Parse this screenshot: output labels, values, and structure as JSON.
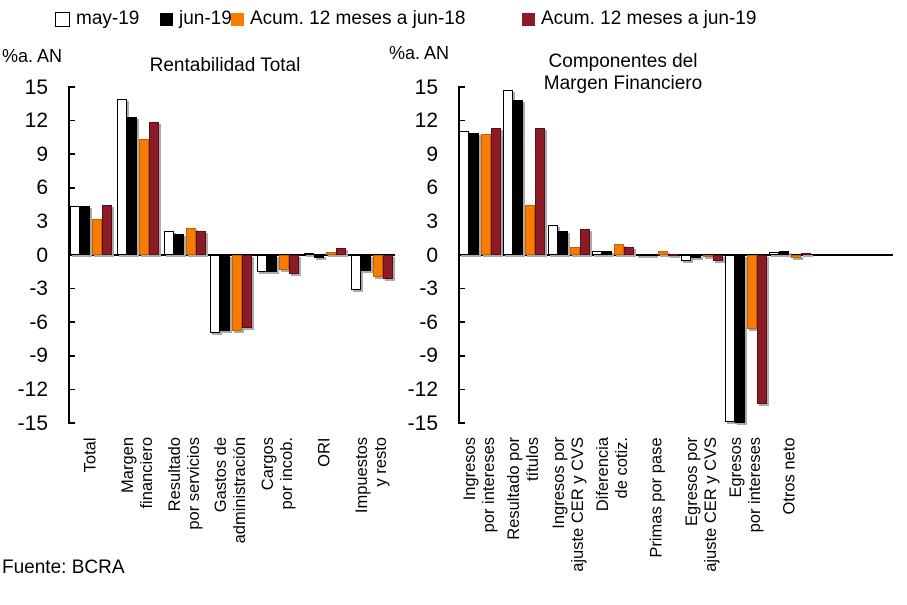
{
  "source": "Fuente: BCRA",
  "colors": {
    "may_19_fill": "#ffffff",
    "jun_19_fill": "#000000",
    "acum_jun18_fill": "#f97c00",
    "acum_jun19_fill": "#8d1a27",
    "axis": "#000000",
    "bar_shadow": "#ababab"
  },
  "legend": {
    "items": [
      {
        "label": "may-19"
      },
      {
        "label": "jun-19"
      },
      {
        "label": "Acum. 12 meses a jun-18"
      },
      {
        "label": "Acum. 12 meses a jun-19"
      }
    ]
  },
  "chart_data": [
    {
      "type": "bar",
      "title": "Rentabilidad Total",
      "unit_label": "%a. AN",
      "ylabel": "%a. AN",
      "xlabel": "",
      "ylim": [
        -15,
        15
      ],
      "ytick_step": 3,
      "grid": false,
      "legend_position": "top",
      "categories": [
        "Total",
        "Margen\nfinanciero",
        "Resultado\npor servicios",
        "Gastos de\nadministración",
        "Cargos\npor incob.",
        "ORI",
        "Impuestos\ny resto"
      ],
      "series": [
        {
          "name": "may-19",
          "values": [
            4.4,
            13.9,
            2.1,
            -7.0,
            -1.5,
            0.2,
            -3.1
          ]
        },
        {
          "name": "jun-19",
          "values": [
            4.4,
            12.3,
            1.9,
            -6.8,
            -1.5,
            -0.3,
            -1.4
          ]
        },
        {
          "name": "Acum. 12 meses a jun-18",
          "values": [
            3.2,
            10.4,
            2.4,
            -6.8,
            -1.3,
            0.3,
            -2.0
          ]
        },
        {
          "name": "Acum. 12 meses a jun-19",
          "values": [
            4.5,
            11.9,
            2.1,
            -6.5,
            -1.7,
            0.6,
            -2.1
          ]
        }
      ]
    },
    {
      "type": "bar",
      "title": "Componentes del\nMargen Financiero",
      "unit_label": "%a. AN",
      "ylabel": "%a. AN",
      "xlabel": "",
      "ylim": [
        -15,
        15
      ],
      "ytick_step": 3,
      "grid": false,
      "legend_position": "top",
      "categories": [
        "Ingresos\npor intereses",
        "Resultado por\ntítulos",
        "Ingresos por\najuste CER y CVS",
        "Diferencia\nde cotiz.",
        "Primas por pase",
        "Egresos por\najuste CER y CVS",
        "Egresos\npor intereses",
        "Otros neto"
      ],
      "series": [
        {
          "name": "may-19",
          "values": [
            11.1,
            14.7,
            2.7,
            0.4,
            0.1,
            -0.5,
            -14.9,
            0.3
          ]
        },
        {
          "name": "jun-19",
          "values": [
            10.9,
            13.8,
            2.1,
            0.4,
            0.1,
            -0.3,
            -15.0,
            0.4
          ]
        },
        {
          "name": "Acum. 12 meses a jun-18",
          "values": [
            10.8,
            4.5,
            0.7,
            1.0,
            0.4,
            -0.1,
            -6.6,
            -0.3
          ]
        },
        {
          "name": "Acum. 12 meses a jun-19",
          "values": [
            11.3,
            11.3,
            2.3,
            0.7,
            0.1,
            -0.5,
            -13.3,
            0.2
          ]
        }
      ]
    }
  ]
}
